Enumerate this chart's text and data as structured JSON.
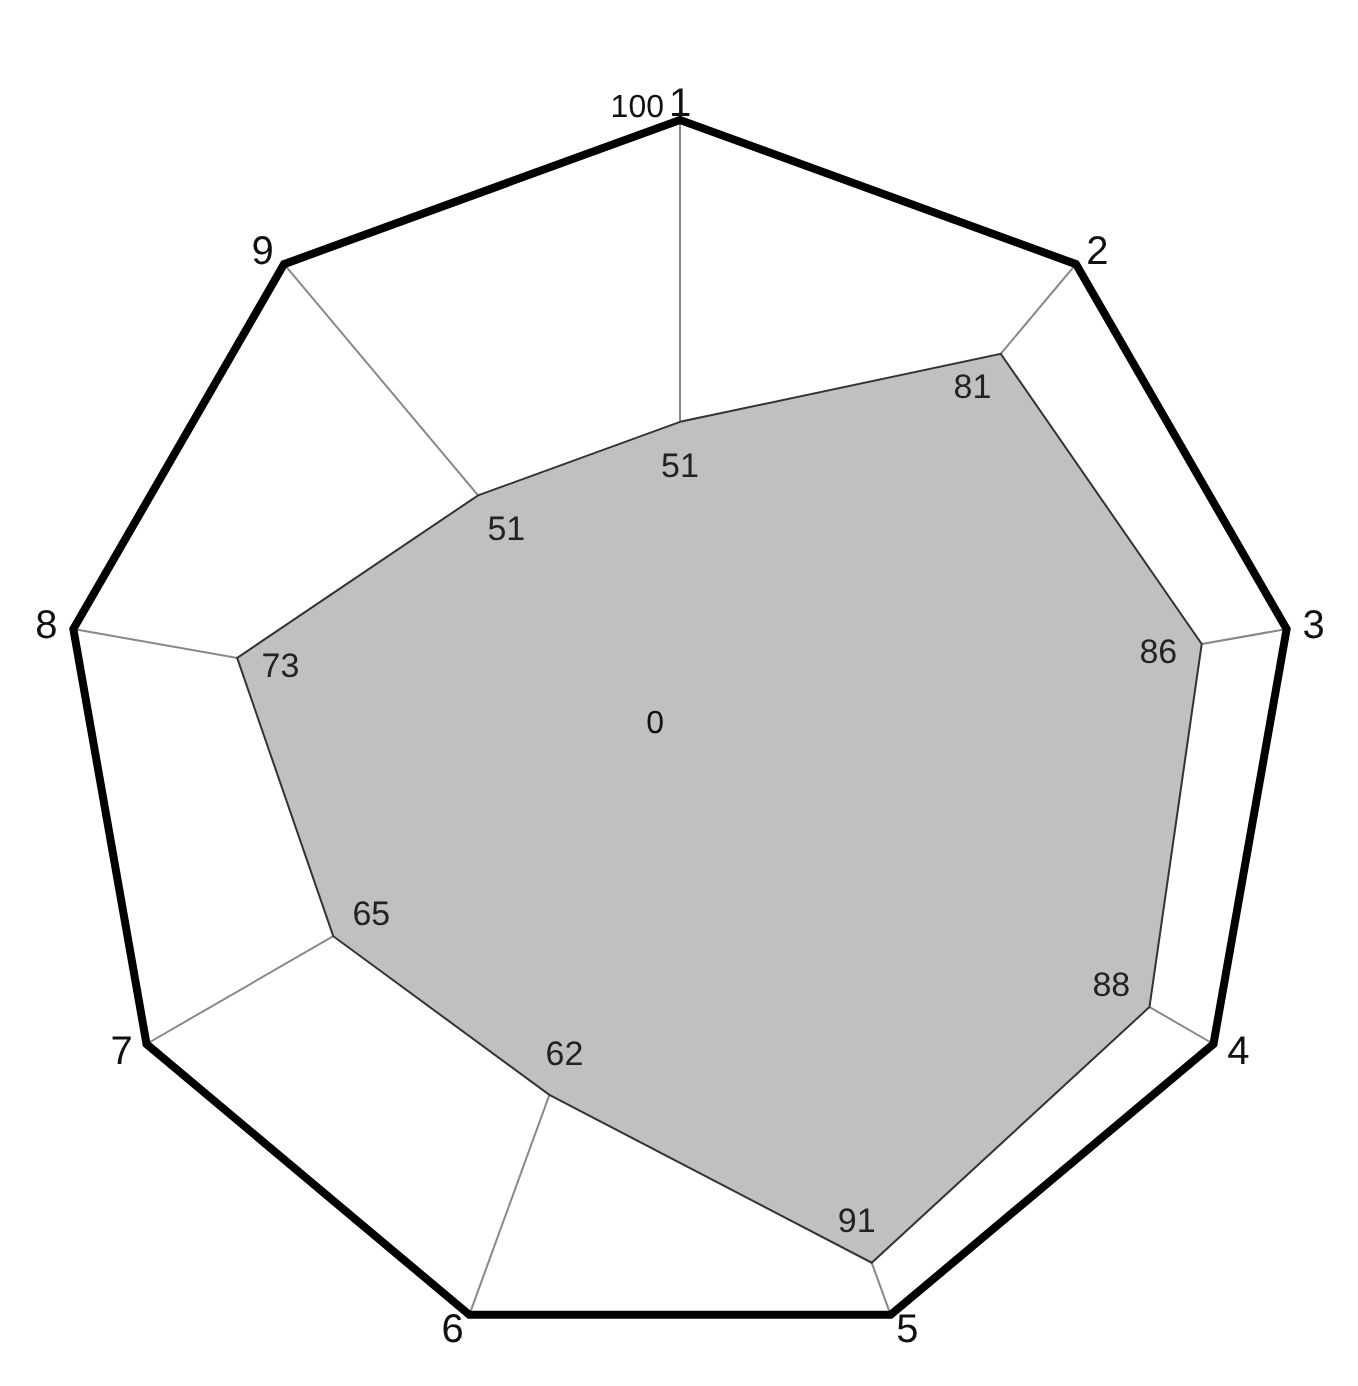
{
  "chart_data": {
    "type": "radar",
    "categories": [
      "1",
      "2",
      "3",
      "4",
      "5",
      "6",
      "7",
      "8",
      "9"
    ],
    "series": [
      {
        "color": "#c0c0c0",
        "values": [
          51,
          81,
          86,
          88,
          91,
          62,
          65,
          73,
          51
        ]
      }
    ],
    "ylim": [
      0,
      100
    ],
    "yticks": [
      0,
      100
    ],
    "grid": true,
    "data_labels": true
  }
}
